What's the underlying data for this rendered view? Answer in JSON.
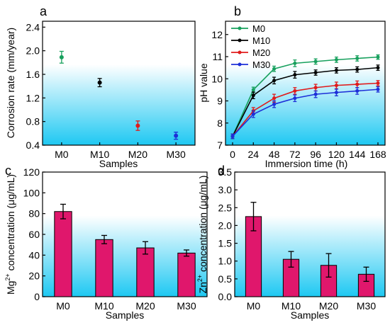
{
  "colors": {
    "bg_top": "#ffffff",
    "bg_bottom": "#1ec8f2",
    "bar": "#e0176c",
    "M0": "#17a05d",
    "M10": "#000000",
    "M20": "#e01b1b",
    "M30": "#1d2fd8"
  },
  "chart_data": [
    {
      "panel": "a",
      "type": "scatter",
      "xlabel": "Samples",
      "ylabel": "Corrosion rate (mm/year)",
      "categories": [
        "M0",
        "M10",
        "M20",
        "M30"
      ],
      "values": [
        1.89,
        1.46,
        0.73,
        0.56
      ],
      "errors": [
        0.1,
        0.07,
        0.08,
        0.06
      ],
      "ylim": [
        0.4,
        2.5
      ],
      "yticks": [
        "0.4",
        "0.8",
        "1.2",
        "1.6",
        "2.0",
        "2.4"
      ],
      "ytick_values": [
        0.4,
        0.8,
        1.2,
        1.6,
        2.0,
        2.4
      ],
      "point_colors": [
        "#17a05d",
        "#000000",
        "#e01b1b",
        "#1d2fd8"
      ]
    },
    {
      "panel": "b",
      "type": "line",
      "xlabel": "Immersion time (h)",
      "ylabel": "pH value",
      "x": [
        0,
        24,
        48,
        72,
        96,
        120,
        144,
        168
      ],
      "xticks": [
        "0",
        "24",
        "48",
        "72",
        "96",
        "120",
        "144",
        "168"
      ],
      "xlim": [
        0,
        168
      ],
      "ylim": [
        7,
        12.6
      ],
      "yticks": [
        "7",
        "8",
        "9",
        "10",
        "11",
        "12"
      ],
      "ytick_values": [
        7,
        8,
        9,
        10,
        11,
        12
      ],
      "legend": "top-left",
      "series": [
        {
          "name": "M0",
          "color": "#17a05d",
          "values": [
            7.4,
            9.5,
            10.45,
            10.7,
            10.78,
            10.86,
            10.92,
            10.98
          ],
          "errors": [
            0.1,
            0.12,
            0.12,
            0.15,
            0.12,
            0.12,
            0.12,
            0.1
          ]
        },
        {
          "name": "M10",
          "color": "#000000",
          "values": [
            7.4,
            9.25,
            9.92,
            10.18,
            10.28,
            10.38,
            10.42,
            10.5
          ],
          "errors": [
            0.1,
            0.15,
            0.15,
            0.15,
            0.12,
            0.12,
            0.12,
            0.12
          ]
        },
        {
          "name": "M20",
          "color": "#e01b1b",
          "values": [
            7.4,
            8.55,
            9.12,
            9.45,
            9.6,
            9.7,
            9.75,
            9.8
          ],
          "errors": [
            0.1,
            0.15,
            0.18,
            0.15,
            0.15,
            0.15,
            0.15,
            0.12
          ]
        },
        {
          "name": "M30",
          "color": "#1d2fd8",
          "values": [
            7.4,
            8.4,
            8.85,
            9.12,
            9.3,
            9.38,
            9.45,
            9.52
          ],
          "errors": [
            0.1,
            0.15,
            0.15,
            0.15,
            0.15,
            0.15,
            0.15,
            0.12
          ]
        }
      ]
    },
    {
      "panel": "c",
      "type": "bar",
      "xlabel": "Samples",
      "ylabel_prefix": "Mg",
      "ylabel_sup": "2+",
      "ylabel_suffix": " concentration (μg/mL)",
      "categories": [
        "M0",
        "M10",
        "M20",
        "M30"
      ],
      "values": [
        82,
        55,
        47,
        42
      ],
      "errors": [
        7,
        4,
        6,
        3
      ],
      "ylim": [
        0,
        120
      ],
      "yticks": [
        "0",
        "20",
        "40",
        "60",
        "80",
        "100",
        "120"
      ],
      "ytick_values": [
        0,
        20,
        40,
        60,
        80,
        100,
        120
      ]
    },
    {
      "panel": "d",
      "type": "bar",
      "xlabel": "Samples",
      "ylabel_prefix": "Zn",
      "ylabel_sup": "2+",
      "ylabel_suffix": " concentration (μg/mL)",
      "categories": [
        "M0",
        "M10",
        "M20",
        "M30"
      ],
      "values": [
        2.25,
        1.05,
        0.88,
        0.63
      ],
      "errors": [
        0.4,
        0.22,
        0.33,
        0.2
      ],
      "ylim": [
        0,
        3.5
      ],
      "yticks": [
        "0.0",
        "0.5",
        "1.0",
        "1.5",
        "2.0",
        "2.5",
        "3.0",
        "3.5"
      ],
      "ytick_values": [
        0,
        0.5,
        1.0,
        1.5,
        2.0,
        2.5,
        3.0,
        3.5
      ]
    }
  ]
}
